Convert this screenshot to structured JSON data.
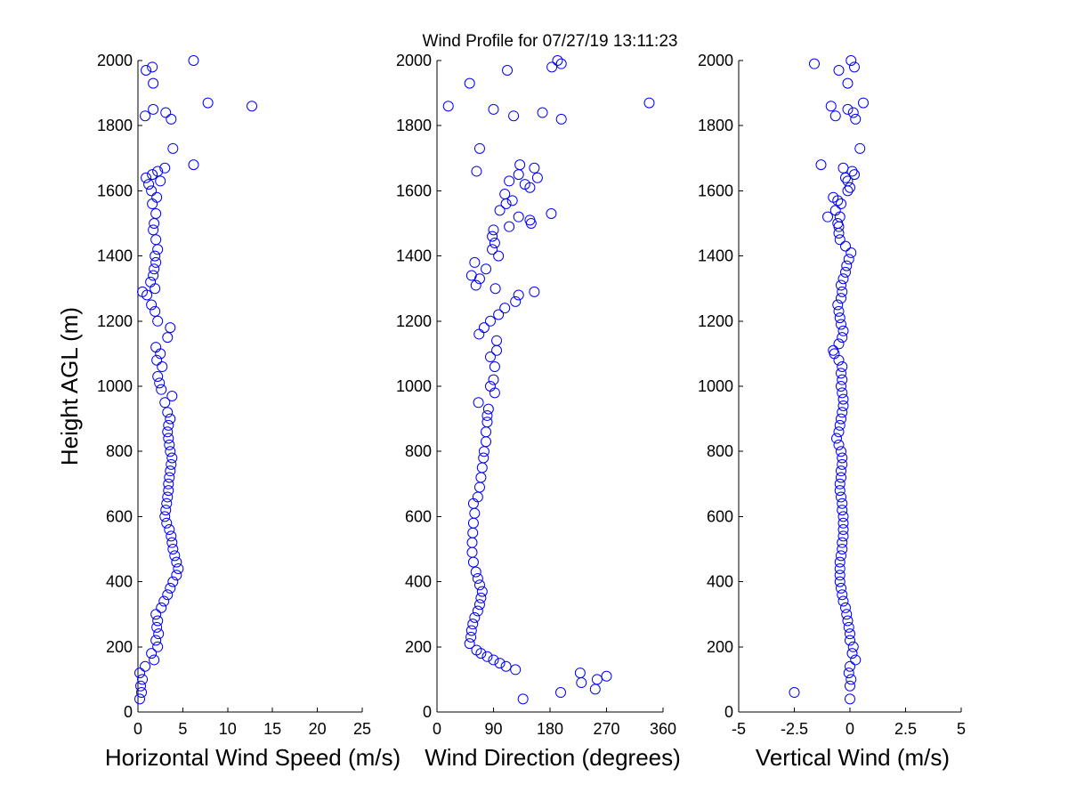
{
  "title": "Wind Profile for  07/27/19 13:11:23",
  "colors": {
    "marker": "#0000ff",
    "axis": "#000000",
    "background": "#ffffff"
  },
  "chart_data": [
    {
      "type": "scatter",
      "xlabel": "Horizontal Wind Speed (m/s)",
      "ylabel": "Height AGL (m)",
      "xlim": [
        0,
        25
      ],
      "ylim": [
        0,
        2000
      ],
      "xticks": [
        "0",
        "5",
        "10",
        "15",
        "20",
        "25"
      ],
      "yticks": [
        "0",
        "200",
        "400",
        "600",
        "800",
        "1000",
        "1200",
        "1400",
        "1600",
        "1800",
        "2000"
      ],
      "grid": false,
      "marker": "open-circle",
      "points": [
        [
          0.2,
          40
        ],
        [
          0.4,
          60
        ],
        [
          0.3,
          80
        ],
        [
          0.5,
          100
        ],
        [
          0.2,
          120
        ],
        [
          0.8,
          140
        ],
        [
          1.8,
          160
        ],
        [
          1.5,
          180
        ],
        [
          2.2,
          200
        ],
        [
          2.0,
          220
        ],
        [
          2.3,
          240
        ],
        [
          2.1,
          260
        ],
        [
          2.2,
          280
        ],
        [
          2.0,
          300
        ],
        [
          2.6,
          320
        ],
        [
          2.9,
          340
        ],
        [
          3.3,
          360
        ],
        [
          3.6,
          380
        ],
        [
          3.9,
          400
        ],
        [
          4.3,
          420
        ],
        [
          4.5,
          440
        ],
        [
          4.3,
          460
        ],
        [
          4.1,
          480
        ],
        [
          3.9,
          500
        ],
        [
          3.8,
          520
        ],
        [
          3.7,
          540
        ],
        [
          3.5,
          560
        ],
        [
          3.2,
          580
        ],
        [
          3.0,
          600
        ],
        [
          3.1,
          620
        ],
        [
          3.2,
          640
        ],
        [
          3.3,
          660
        ],
        [
          3.4,
          680
        ],
        [
          3.4,
          700
        ],
        [
          3.5,
          720
        ],
        [
          3.6,
          740
        ],
        [
          3.7,
          760
        ],
        [
          3.8,
          780
        ],
        [
          3.6,
          800
        ],
        [
          3.5,
          820
        ],
        [
          3.4,
          840
        ],
        [
          3.3,
          860
        ],
        [
          3.4,
          880
        ],
        [
          3.6,
          900
        ],
        [
          3.3,
          920
        ],
        [
          3.0,
          950
        ],
        [
          3.8,
          970
        ],
        [
          2.6,
          990
        ],
        [
          2.4,
          1010
        ],
        [
          2.2,
          1030
        ],
        [
          2.7,
          1060
        ],
        [
          2.1,
          1080
        ],
        [
          2.5,
          1100
        ],
        [
          2.0,
          1120
        ],
        [
          3.3,
          1150
        ],
        [
          3.6,
          1180
        ],
        [
          2.2,
          1200
        ],
        [
          1.9,
          1230
        ],
        [
          1.5,
          1250
        ],
        [
          1.0,
          1280
        ],
        [
          0.5,
          1290
        ],
        [
          1.9,
          1300
        ],
        [
          1.4,
          1320
        ],
        [
          1.7,
          1340
        ],
        [
          1.8,
          1360
        ],
        [
          2.0,
          1380
        ],
        [
          1.9,
          1400
        ],
        [
          2.2,
          1420
        ],
        [
          2.0,
          1450
        ],
        [
          1.7,
          1480
        ],
        [
          1.8,
          1500
        ],
        [
          2.0,
          1530
        ],
        [
          1.6,
          1560
        ],
        [
          2.1,
          1580
        ],
        [
          1.5,
          1600
        ],
        [
          1.2,
          1620
        ],
        [
          2.5,
          1630
        ],
        [
          0.9,
          1640
        ],
        [
          1.6,
          1650
        ],
        [
          2.2,
          1660
        ],
        [
          3.0,
          1670
        ],
        [
          6.2,
          1680
        ],
        [
          3.9,
          1730
        ],
        [
          3.7,
          1820
        ],
        [
          0.8,
          1830
        ],
        [
          3.1,
          1840
        ],
        [
          1.7,
          1850
        ],
        [
          12.7,
          1860
        ],
        [
          7.8,
          1870
        ],
        [
          1.7,
          1930
        ],
        [
          0.9,
          1970
        ],
        [
          1.6,
          1980
        ],
        [
          6.2,
          2000
        ]
      ]
    },
    {
      "type": "scatter",
      "xlabel": "Wind Direction (degrees)",
      "ylabel": "",
      "xlim": [
        0,
        360
      ],
      "ylim": [
        0,
        2000
      ],
      "xticks": [
        "0",
        "90",
        "180",
        "270",
        "360"
      ],
      "yticks": [
        "0",
        "200",
        "400",
        "600",
        "800",
        "1000",
        "1200",
        "1400",
        "1600",
        "1800",
        "2000"
      ],
      "grid": false,
      "marker": "open-circle",
      "points": [
        [
          137,
          40
        ],
        [
          197,
          60
        ],
        [
          252,
          70
        ],
        [
          230,
          90
        ],
        [
          255,
          100
        ],
        [
          270,
          110
        ],
        [
          228,
          120
        ],
        [
          125,
          130
        ],
        [
          110,
          140
        ],
        [
          100,
          150
        ],
        [
          90,
          160
        ],
        [
          80,
          170
        ],
        [
          70,
          180
        ],
        [
          63,
          190
        ],
        [
          52,
          210
        ],
        [
          54,
          230
        ],
        [
          55,
          250
        ],
        [
          57,
          270
        ],
        [
          60,
          290
        ],
        [
          65,
          310
        ],
        [
          68,
          330
        ],
        [
          70,
          350
        ],
        [
          72,
          370
        ],
        [
          68,
          390
        ],
        [
          65,
          410
        ],
        [
          62,
          430
        ],
        [
          58,
          460
        ],
        [
          56,
          490
        ],
        [
          56,
          520
        ],
        [
          57,
          550
        ],
        [
          58,
          580
        ],
        [
          60,
          610
        ],
        [
          58,
          640
        ],
        [
          65,
          660
        ],
        [
          68,
          690
        ],
        [
          70,
          720
        ],
        [
          72,
          750
        ],
        [
          74,
          780
        ],
        [
          75,
          800
        ],
        [
          78,
          830
        ],
        [
          78,
          860
        ],
        [
          80,
          890
        ],
        [
          80,
          910
        ],
        [
          82,
          930
        ],
        [
          66,
          950
        ],
        [
          92,
          980
        ],
        [
          85,
          1000
        ],
        [
          90,
          1020
        ],
        [
          92,
          1060
        ],
        [
          85,
          1090
        ],
        [
          95,
          1110
        ],
        [
          95,
          1140
        ],
        [
          67,
          1160
        ],
        [
          75,
          1180
        ],
        [
          85,
          1200
        ],
        [
          98,
          1220
        ],
        [
          108,
          1240
        ],
        [
          125,
          1260
        ],
        [
          130,
          1280
        ],
        [
          155,
          1290
        ],
        [
          62,
          1310
        ],
        [
          93,
          1300
        ],
        [
          68,
          1330
        ],
        [
          55,
          1340
        ],
        [
          60,
          1380
        ],
        [
          78,
          1360
        ],
        [
          98,
          1400
        ],
        [
          88,
          1420
        ],
        [
          92,
          1440
        ],
        [
          88,
          1460
        ],
        [
          90,
          1480
        ],
        [
          115,
          1490
        ],
        [
          150,
          1500
        ],
        [
          148,
          1510
        ],
        [
          130,
          1520
        ],
        [
          182,
          1530
        ],
        [
          100,
          1540
        ],
        [
          110,
          1560
        ],
        [
          120,
          1570
        ],
        [
          108,
          1590
        ],
        [
          148,
          1610
        ],
        [
          140,
          1620
        ],
        [
          115,
          1630
        ],
        [
          160,
          1640
        ],
        [
          130,
          1650
        ],
        [
          63,
          1660
        ],
        [
          155,
          1670
        ],
        [
          132,
          1680
        ],
        [
          68,
          1730
        ],
        [
          198,
          1820
        ],
        [
          122,
          1830
        ],
        [
          168,
          1840
        ],
        [
          90,
          1850
        ],
        [
          18,
          1860
        ],
        [
          338,
          1870
        ],
        [
          52,
          1930
        ],
        [
          112,
          1970
        ],
        [
          183,
          1980
        ],
        [
          198,
          1990
        ],
        [
          192,
          2000
        ]
      ]
    },
    {
      "type": "scatter",
      "xlabel": "Vertical Wind (m/s)",
      "ylabel": "",
      "xlim": [
        -5,
        5
      ],
      "ylim": [
        0,
        2000
      ],
      "xticks": [
        "-5",
        "-2.5",
        "0",
        "2.5",
        "5"
      ],
      "yticks": [
        "0",
        "200",
        "400",
        "600",
        "800",
        "1000",
        "1200",
        "1400",
        "1600",
        "1800",
        "2000"
      ],
      "grid": false,
      "marker": "open-circle",
      "points": [
        [
          0.0,
          40
        ],
        [
          -2.5,
          60
        ],
        [
          0.0,
          80
        ],
        [
          0.05,
          100
        ],
        [
          -0.05,
          120
        ],
        [
          0.0,
          140
        ],
        [
          0.25,
          160
        ],
        [
          0.1,
          180
        ],
        [
          0.15,
          200
        ],
        [
          0.0,
          220
        ],
        [
          0.0,
          240
        ],
        [
          -0.05,
          260
        ],
        [
          -0.1,
          280
        ],
        [
          -0.15,
          300
        ],
        [
          -0.2,
          320
        ],
        [
          -0.3,
          340
        ],
        [
          -0.35,
          360
        ],
        [
          -0.4,
          380
        ],
        [
          -0.45,
          400
        ],
        [
          -0.45,
          420
        ],
        [
          -0.45,
          440
        ],
        [
          -0.45,
          460
        ],
        [
          -0.4,
          480
        ],
        [
          -0.35,
          500
        ],
        [
          -0.35,
          520
        ],
        [
          -0.3,
          540
        ],
        [
          -0.3,
          560
        ],
        [
          -0.3,
          580
        ],
        [
          -0.3,
          600
        ],
        [
          -0.35,
          620
        ],
        [
          -0.35,
          640
        ],
        [
          -0.4,
          660
        ],
        [
          -0.45,
          680
        ],
        [
          -0.45,
          700
        ],
        [
          -0.4,
          720
        ],
        [
          -0.4,
          740
        ],
        [
          -0.35,
          760
        ],
        [
          -0.35,
          780
        ],
        [
          -0.4,
          800
        ],
        [
          -0.5,
          820
        ],
        [
          -0.6,
          840
        ],
        [
          -0.5,
          860
        ],
        [
          -0.45,
          880
        ],
        [
          -0.4,
          900
        ],
        [
          -0.35,
          920
        ],
        [
          -0.3,
          940
        ],
        [
          -0.3,
          960
        ],
        [
          -0.35,
          980
        ],
        [
          -0.4,
          1000
        ],
        [
          -0.35,
          1020
        ],
        [
          -0.4,
          1040
        ],
        [
          -0.35,
          1060
        ],
        [
          -0.5,
          1080
        ],
        [
          -0.7,
          1100
        ],
        [
          -0.75,
          1110
        ],
        [
          -0.5,
          1130
        ],
        [
          -0.35,
          1150
        ],
        [
          -0.3,
          1170
        ],
        [
          -0.4,
          1190
        ],
        [
          -0.45,
          1210
        ],
        [
          -0.5,
          1230
        ],
        [
          -0.55,
          1250
        ],
        [
          -0.4,
          1270
        ],
        [
          -0.35,
          1290
        ],
        [
          -0.4,
          1310
        ],
        [
          -0.3,
          1330
        ],
        [
          -0.2,
          1350
        ],
        [
          -0.15,
          1370
        ],
        [
          -0.05,
          1390
        ],
        [
          0.05,
          1410
        ],
        [
          -0.2,
          1430
        ],
        [
          -0.45,
          1450
        ],
        [
          -0.5,
          1470
        ],
        [
          -0.5,
          1490
        ],
        [
          -0.55,
          1500
        ],
        [
          -0.45,
          1520
        ],
        [
          -1.0,
          1520
        ],
        [
          -0.65,
          1540
        ],
        [
          -0.4,
          1560
        ],
        [
          -0.55,
          1570
        ],
        [
          -0.75,
          1580
        ],
        [
          -0.1,
          1600
        ],
        [
          0.0,
          1610
        ],
        [
          -0.1,
          1630
        ],
        [
          -0.2,
          1640
        ],
        [
          0.2,
          1650
        ],
        [
          0.1,
          1660
        ],
        [
          -0.3,
          1670
        ],
        [
          -1.3,
          1680
        ],
        [
          0.45,
          1730
        ],
        [
          0.25,
          1820
        ],
        [
          -0.65,
          1830
        ],
        [
          0.15,
          1840
        ],
        [
          -0.1,
          1850
        ],
        [
          -0.85,
          1860
        ],
        [
          0.6,
          1870
        ],
        [
          -0.1,
          1930
        ],
        [
          -0.5,
          1970
        ],
        [
          0.2,
          1980
        ],
        [
          -1.6,
          1990
        ],
        [
          0.05,
          2000
        ]
      ]
    }
  ]
}
